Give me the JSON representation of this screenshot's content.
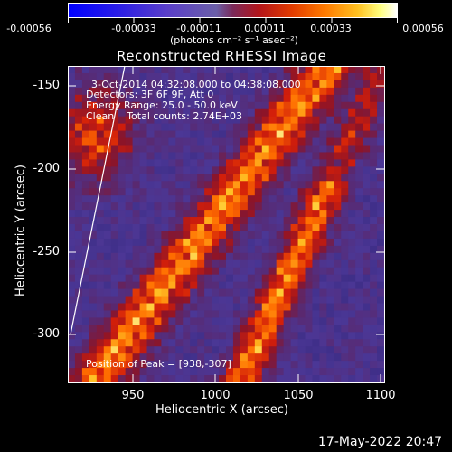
{
  "colorbar": {
    "ticks": [
      "-0.00056",
      "-0.00033",
      "-0.00011",
      "0.00011",
      "0.00033",
      "0.00056"
    ],
    "units": "(photons cm⁻² s⁻¹ asec⁻²)"
  },
  "title": "Reconstructed RHESSI Image",
  "annotations": {
    "time_range": "3-Oct-2014 04:32:08.000 to 04:38:08.000",
    "detectors": "Detectors: 3F 6F 9F, Att 0",
    "energy": "Energy Range: 25.0 - 50.0 keV",
    "method": "Clean    Total counts: 2.74E+03",
    "peak": "Position of Peak = [938,-307]"
  },
  "y_axis": {
    "label": "Heliocentric Y (arcsec)",
    "ticks": [
      "-150",
      "-200",
      "-250",
      "-300"
    ]
  },
  "x_axis": {
    "label": "Heliocentric X (arcsec)",
    "ticks": [
      "950",
      "1000",
      "1050",
      "1100"
    ]
  },
  "footer": {
    "date": "17-May-2022 20:47"
  }
}
